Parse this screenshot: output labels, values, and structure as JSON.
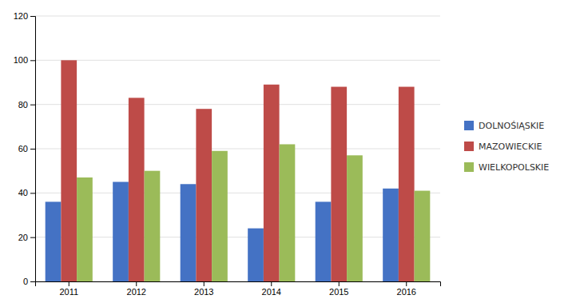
{
  "chart_data": {
    "type": "bar",
    "categories": [
      "2011",
      "2012",
      "2013",
      "2014",
      "2015",
      "2016"
    ],
    "series": [
      {
        "name": "DOLNOŚlĄSKIE",
        "color": "#4472C4",
        "values": [
          36,
          45,
          44,
          24,
          36,
          42
        ]
      },
      {
        "name": "MAZOWIECKIE",
        "color": "#BE4B48",
        "values": [
          100,
          83,
          78,
          89,
          88,
          88
        ]
      },
      {
        "name": "WIELKOPOLSKIE",
        "color": "#9BBB59",
        "values": [
          47,
          50,
          59,
          62,
          57,
          41
        ]
      }
    ],
    "ylim": [
      0,
      120
    ],
    "yticks": [
      0,
      20,
      40,
      60,
      80,
      100,
      120
    ],
    "grid": true,
    "legend": "right"
  }
}
